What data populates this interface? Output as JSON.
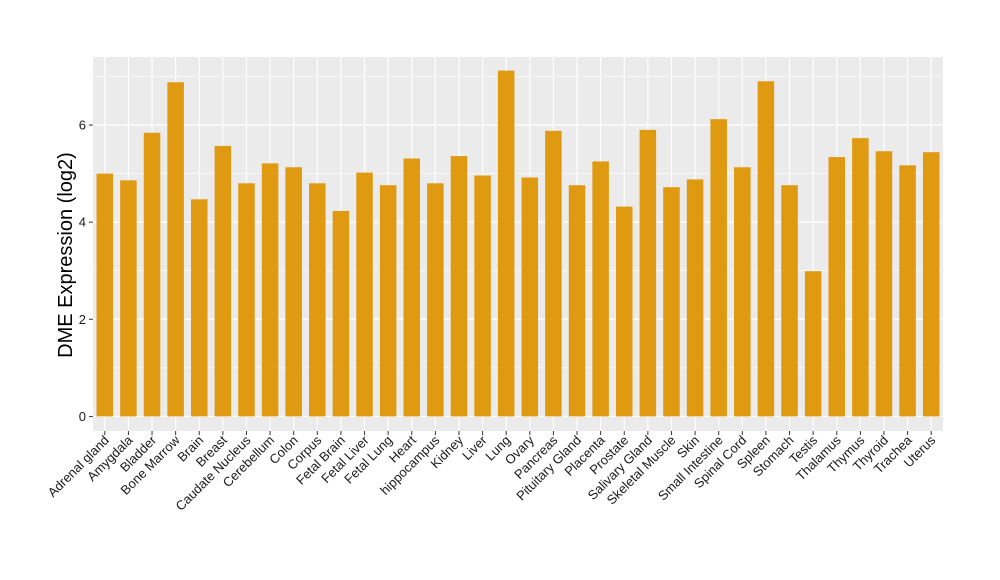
{
  "chart_data": {
    "type": "bar",
    "title": "",
    "xlabel": "",
    "ylabel": "DME Expression (log2)",
    "ylim": [
      -0.3,
      7.4
    ],
    "yticks": [
      0,
      2,
      4,
      6
    ],
    "grid": true,
    "legend": "none",
    "bar_color": "#E09A12",
    "panel_color": "#EBEBEB",
    "categories": [
      "Adrenal gland",
      "Amygdala",
      "Bladder",
      "Bone Marrow",
      "Brain",
      "Breast",
      "Caudate Nucleus",
      "Cerebellum",
      "Colon",
      "Corpus",
      "Fetal Brain",
      "Fetal Liver",
      "Fetal Lung",
      "Heart",
      "hippocampus",
      "Kidney",
      "Liver",
      "Lung",
      "Ovary",
      "Pancreas",
      "Pituitary Gland",
      "Placenta",
      "Prostate",
      "Salivary Gland",
      "Skeletal Muscle",
      "Skin",
      "Small Intestine",
      "Spinal Cord",
      "Spleen",
      "Stomach",
      "Testis",
      "Thalamus",
      "Thymus",
      "Thyroid",
      "Trachea",
      "Uterus"
    ],
    "values": [
      5.0,
      4.86,
      5.84,
      6.88,
      4.47,
      5.57,
      4.8,
      5.21,
      5.13,
      4.8,
      4.23,
      5.02,
      4.76,
      5.31,
      4.8,
      5.36,
      4.96,
      7.12,
      4.92,
      5.88,
      4.76,
      5.25,
      4.32,
      5.9,
      4.72,
      4.88,
      6.12,
      5.13,
      6.9,
      4.76,
      2.99,
      5.34,
      5.73,
      5.46,
      5.17,
      5.44
    ]
  }
}
